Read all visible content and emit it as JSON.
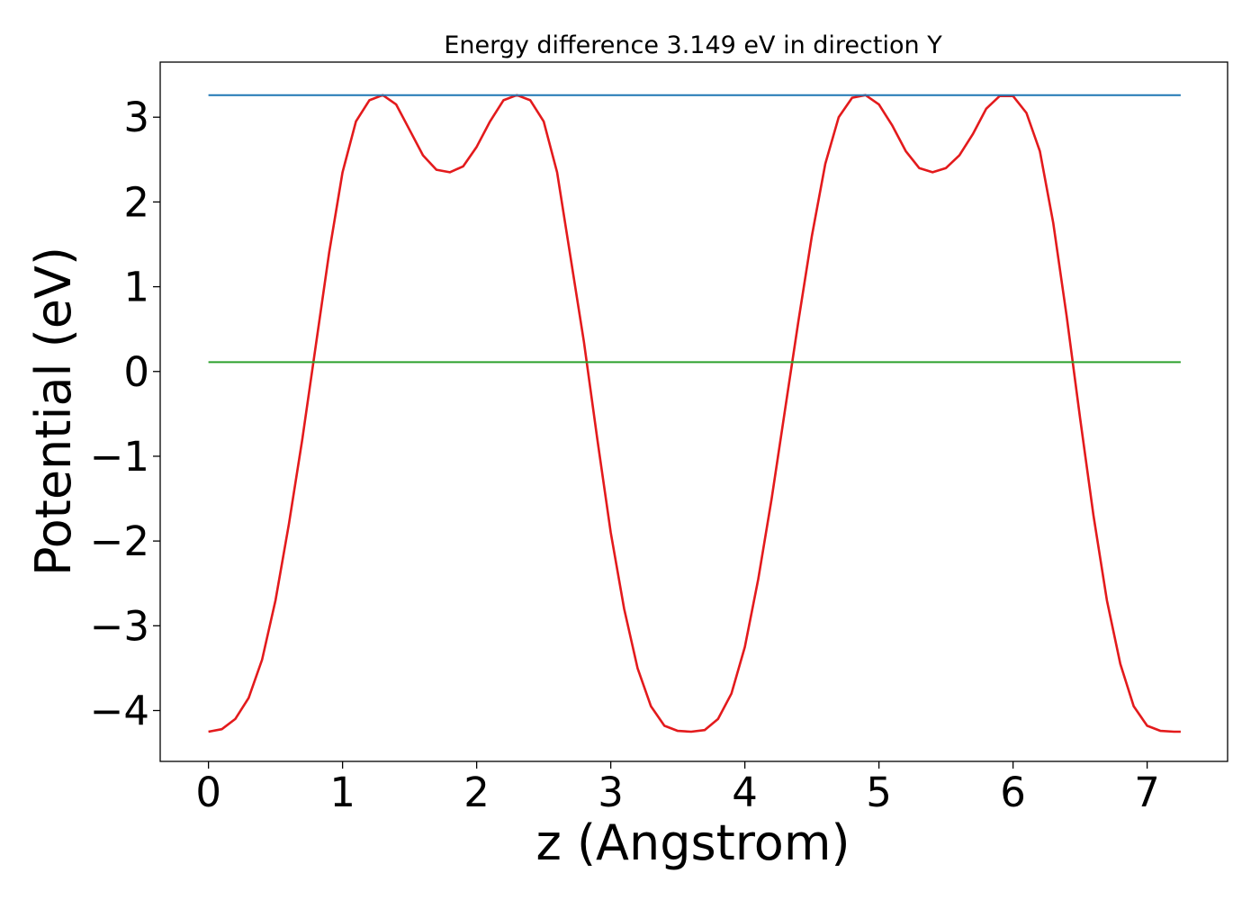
{
  "chart_data": {
    "type": "line",
    "title": "Energy difference 3.149 eV in direction Y",
    "xlabel": "z (Angstrom)",
    "ylabel": "Potential (eV)",
    "xlim": [
      -0.36,
      7.6
    ],
    "ylim": [
      -4.6,
      3.65
    ],
    "xticks": [
      0,
      1,
      2,
      3,
      4,
      5,
      6,
      7
    ],
    "yticks": [
      -4,
      -3,
      -2,
      -1,
      0,
      1,
      2,
      3
    ],
    "xtick_labels": [
      "0",
      "1",
      "2",
      "3",
      "4",
      "5",
      "6",
      "7"
    ],
    "ytick_labels": [
      "−4",
      "−3",
      "−2",
      "−1",
      "0",
      "1",
      "2",
      "3"
    ],
    "grid": false,
    "series": [
      {
        "color": "#e31a1c",
        "x": [
          0.0,
          0.1,
          0.2,
          0.3,
          0.4,
          0.5,
          0.6,
          0.7,
          0.8,
          0.9,
          1.0,
          1.1,
          1.2,
          1.3,
          1.4,
          1.5,
          1.6,
          1.7,
          1.8,
          1.9,
          2.0,
          2.1,
          2.2,
          2.3,
          2.4,
          2.5,
          2.6,
          2.7,
          2.8,
          2.9,
          3.0,
          3.1,
          3.2,
          3.3,
          3.4,
          3.5,
          3.6,
          3.7,
          3.8,
          3.9,
          4.0,
          4.1,
          4.2,
          4.3,
          4.4,
          4.5,
          4.6,
          4.7,
          4.8,
          4.9,
          5.0,
          5.1,
          5.2,
          5.3,
          5.4,
          5.5,
          5.6,
          5.7,
          5.8,
          5.9,
          6.0,
          6.1,
          6.2,
          6.3,
          6.4,
          6.5,
          6.6,
          6.7,
          6.8,
          6.9,
          7.0,
          7.1,
          7.2,
          7.25
        ],
        "y": [
          -4.25,
          -4.22,
          -4.1,
          -3.85,
          -3.4,
          -2.7,
          -1.8,
          -0.8,
          0.3,
          1.4,
          2.35,
          2.95,
          3.2,
          3.26,
          3.15,
          2.85,
          2.55,
          2.38,
          2.35,
          2.42,
          2.65,
          2.95,
          3.2,
          3.26,
          3.2,
          2.95,
          2.35,
          1.35,
          0.35,
          -0.8,
          -1.9,
          -2.8,
          -3.5,
          -3.95,
          -4.18,
          -4.24,
          -4.25,
          -4.23,
          -4.1,
          -3.8,
          -3.25,
          -2.45,
          -1.5,
          -0.45,
          0.6,
          1.6,
          2.45,
          3.0,
          3.23,
          3.26,
          3.15,
          2.9,
          2.6,
          2.4,
          2.35,
          2.4,
          2.55,
          2.8,
          3.1,
          3.25,
          3.25,
          3.05,
          2.6,
          1.75,
          0.65,
          -0.55,
          -1.7,
          -2.7,
          -3.45,
          -3.95,
          -4.18,
          -4.24,
          -4.25,
          -4.25
        ]
      },
      {
        "color": "#1f77b4",
        "x": [
          0.0,
          7.25
        ],
        "y": [
          3.26,
          3.26
        ]
      },
      {
        "color": "#2ca02c",
        "x": [
          0.0,
          7.25
        ],
        "y": [
          0.11,
          0.11
        ]
      }
    ]
  }
}
